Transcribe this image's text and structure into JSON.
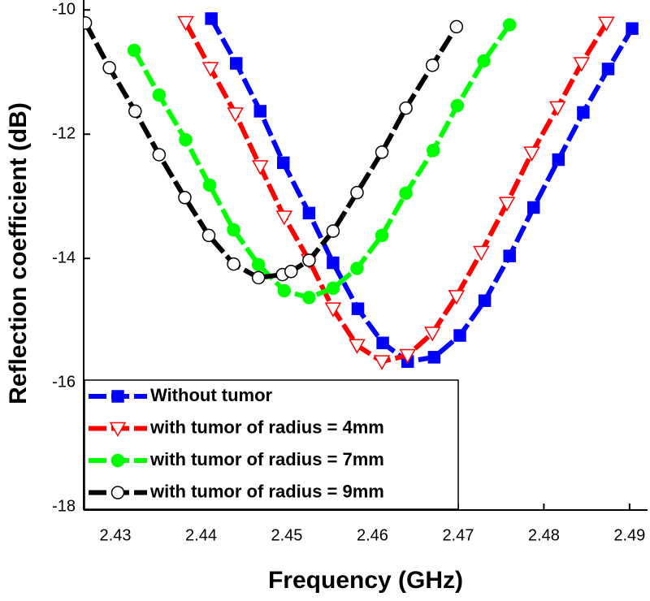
{
  "chart_data": {
    "type": "line",
    "xlabel": "Frequency (GHz)",
    "ylabel": "Reflection coefficient (dB)",
    "xlim": [
      2.4263,
      2.4921
    ],
    "ylim": [
      -18.05,
      -9.84
    ],
    "xticks": [
      2.43,
      2.44,
      2.45,
      2.46,
      2.47,
      2.48,
      2.49
    ],
    "yticks": [
      -18,
      -16,
      -14,
      -12,
      -10
    ],
    "legend": "lower left",
    "series": [
      {
        "name": "Without tumor",
        "color": "#0000ff",
        "marker": "square",
        "filled": true,
        "x": [
          2.4412,
          2.4441,
          2.4469,
          2.4496,
          2.4526,
          2.4554,
          2.4583,
          2.4612,
          2.4641,
          2.4672,
          2.4702,
          2.4731,
          2.476,
          2.4788,
          2.4817,
          2.4846,
          2.4875,
          2.4903
        ],
        "values": [
          -10.14,
          -10.86,
          -11.63,
          -12.46,
          -13.27,
          -14.07,
          -14.81,
          -15.36,
          -15.66,
          -15.59,
          -15.24,
          -14.68,
          -13.96,
          -13.18,
          -12.41,
          -11.65,
          -10.95,
          -10.3
        ]
      },
      {
        "name": "with tumor of radius = 4mm",
        "color": "#ff0000",
        "marker": "triangle-down",
        "filled": false,
        "x": [
          2.4382,
          2.4411,
          2.444,
          2.4469,
          2.4497,
          2.4526,
          2.4554,
          2.4582,
          2.4611,
          2.4641,
          2.467,
          2.4698,
          2.4727,
          2.4757,
          2.4786,
          2.4816,
          2.4844,
          2.4873
        ],
        "values": [
          -10.2,
          -10.94,
          -11.67,
          -12.52,
          -13.33,
          -14.03,
          -14.81,
          -15.4,
          -15.66,
          -15.56,
          -15.2,
          -14.61,
          -13.9,
          -13.11,
          -12.3,
          -11.57,
          -10.86,
          -10.21
        ]
      },
      {
        "name": "with tumor of radius = 7mm",
        "color": "#00ff00",
        "marker": "circle",
        "filled": true,
        "x": [
          2.4322,
          2.4351,
          2.4382,
          2.441,
          2.4438,
          2.4467,
          2.4497,
          2.4526,
          2.4554,
          2.4582,
          2.4611,
          2.4639,
          2.4671,
          2.4699,
          2.473,
          2.476
        ],
        "values": [
          -10.65,
          -11.37,
          -12.09,
          -12.82,
          -13.54,
          -14.1,
          -14.52,
          -14.63,
          -14.48,
          -14.16,
          -13.63,
          -12.95,
          -12.26,
          -11.54,
          -10.82,
          -10.24
        ]
      },
      {
        "name": "with tumor of radius = 9mm",
        "color": "#000000",
        "marker": "circle",
        "filled": false,
        "x": [
          2.4265,
          2.4293,
          2.4323,
          2.4351,
          2.4381,
          2.4409,
          2.4438,
          2.4467,
          2.4495,
          2.4505,
          2.4526,
          2.4554,
          2.4582,
          2.4611,
          2.4639,
          2.467,
          2.4698
        ],
        "values": [
          -10.21,
          -10.93,
          -11.63,
          -12.33,
          -13.02,
          -13.63,
          -14.09,
          -14.31,
          -14.26,
          -14.21,
          -14.03,
          -13.56,
          -12.94,
          -12.29,
          -11.58,
          -10.89,
          -10.27
        ]
      }
    ]
  }
}
